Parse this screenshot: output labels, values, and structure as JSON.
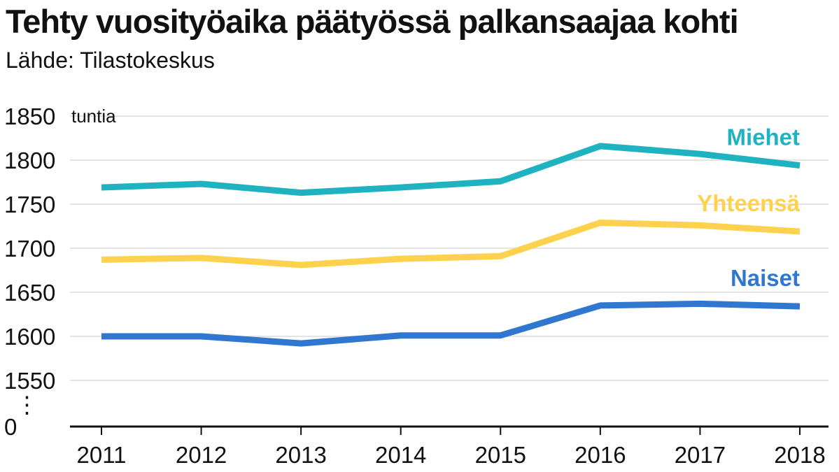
{
  "chart_data": {
    "type": "line",
    "title": "Tehty vuosityöaika päätyössä palkansaajaa kohti",
    "subtitle": "Lähde: Tilastokeskus",
    "ylabel": "tuntia",
    "xlabel": "",
    "x": [
      "2011",
      "2012",
      "2013",
      "2014",
      "2015",
      "2016",
      "2017",
      "2018"
    ],
    "ylim": [
      1550,
      1850
    ],
    "y_ticks": [
      "1850",
      "1800",
      "1750",
      "1700",
      "1650",
      "1600",
      "1550"
    ],
    "y_baseline_label": "0",
    "axis_break": "⋮",
    "grid": true,
    "legend": "direct labels at right end of lines",
    "series": [
      {
        "name": "Miehet",
        "color": "#1fb3c2",
        "values": [
          1769,
          1773,
          1763,
          1769,
          1776,
          1816,
          1807,
          1794
        ]
      },
      {
        "name": "Yhteensä",
        "color": "#ffd24d",
        "values": [
          1687,
          1689,
          1681,
          1688,
          1691,
          1729,
          1726,
          1719
        ]
      },
      {
        "name": "Naiset",
        "color": "#2f77cf",
        "values": [
          1600,
          1600,
          1592,
          1601,
          1601,
          1635,
          1637,
          1634
        ]
      }
    ]
  }
}
